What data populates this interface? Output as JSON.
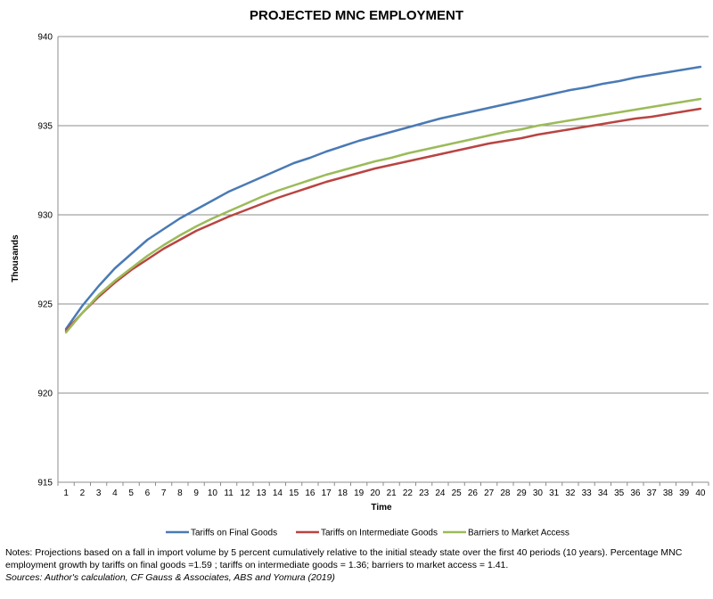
{
  "chart_data": {
    "type": "line",
    "title": "PROJECTED MNC EMPLOYMENT",
    "xlabel": "Time",
    "ylabel": "Thousands",
    "ylim": [
      915,
      940
    ],
    "yticks": [
      915,
      920,
      925,
      930,
      935,
      940
    ],
    "grid": true,
    "legend_position": "bottom",
    "x": [
      1,
      2,
      3,
      4,
      5,
      6,
      7,
      8,
      9,
      10,
      11,
      12,
      13,
      14,
      15,
      16,
      17,
      18,
      19,
      20,
      21,
      22,
      23,
      24,
      25,
      26,
      27,
      28,
      29,
      30,
      31,
      32,
      33,
      34,
      35,
      36,
      37,
      38,
      39,
      40
    ],
    "series": [
      {
        "name": "Tariffs on Final Goods",
        "color": "#4a7ab5",
        "values": [
          923.6,
          924.9,
          926.0,
          927.0,
          927.8,
          928.6,
          929.2,
          929.8,
          930.3,
          930.8,
          931.3,
          931.7,
          932.1,
          932.5,
          932.9,
          933.2,
          933.55,
          933.85,
          934.15,
          934.4,
          934.65,
          934.9,
          935.15,
          935.4,
          935.6,
          935.8,
          936.0,
          936.2,
          936.4,
          936.6,
          936.8,
          937.0,
          937.15,
          937.35,
          937.5,
          937.7,
          937.85,
          938.0,
          938.15,
          938.3
        ]
      },
      {
        "name": "Tariffs on Intermediate Goods",
        "color": "#b94441",
        "values": [
          923.5,
          924.5,
          925.4,
          926.2,
          926.9,
          927.5,
          928.1,
          928.6,
          929.1,
          929.5,
          929.9,
          930.25,
          930.6,
          930.95,
          931.25,
          931.55,
          931.85,
          932.1,
          932.35,
          932.6,
          932.8,
          933.0,
          933.2,
          933.4,
          933.6,
          933.8,
          934.0,
          934.15,
          934.3,
          934.5,
          934.65,
          934.8,
          934.95,
          935.1,
          935.25,
          935.4,
          935.5,
          935.65,
          935.8,
          935.95
        ]
      },
      {
        "name": "Barriers to Market Access",
        "color": "#9bbb59",
        "values": [
          923.4,
          924.5,
          925.5,
          926.3,
          927.0,
          927.7,
          928.3,
          928.85,
          929.35,
          929.8,
          930.2,
          930.6,
          931.0,
          931.35,
          931.65,
          931.95,
          932.25,
          932.5,
          932.75,
          933.0,
          933.2,
          933.45,
          933.65,
          933.85,
          934.05,
          934.25,
          934.45,
          934.65,
          934.8,
          935.0,
          935.15,
          935.3,
          935.45,
          935.6,
          935.75,
          935.9,
          936.05,
          936.2,
          936.35,
          936.5
        ]
      }
    ]
  },
  "notes": {
    "text": "Notes: Projections based on a fall in import volume by 5 percent cumulatively relative to the initial steady state over the first 40 periods (10 years). Percentage MNC employment growth by tariffs on final goods =1.59 ; tariffs on intermediate goods = 1.36; barriers to market access = 1.41.",
    "sources": "Sources: Author's calculation, CF Gauss & Associates, ABS and Yomura (2019)"
  }
}
